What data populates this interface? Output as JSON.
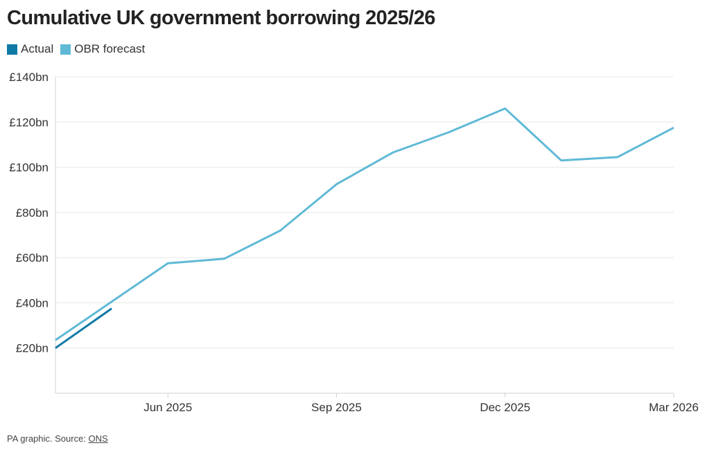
{
  "title": "Cumulative UK government borrowing 2025/26",
  "footer": {
    "text": "PA graphic. Source: ",
    "source_link": "ONS"
  },
  "colors": {
    "actual": "#0f7aa6",
    "forecast": "#5fb9d6",
    "grid": "#e8e8e8",
    "axis": "#d0d0d0"
  },
  "chart_data": {
    "type": "line",
    "title": "Cumulative UK government borrowing 2025/26",
    "legend_position": "top-left",
    "grid": true,
    "y_unit_prefix": "£",
    "y_unit_suffix": "bn",
    "ylim": [
      0,
      140
    ],
    "y_ticks": [
      {
        "value": 20,
        "label": "£20bn"
      },
      {
        "value": 40,
        "label": "£40bn"
      },
      {
        "value": 60,
        "label": "£60bn"
      },
      {
        "value": 80,
        "label": "£80bn"
      },
      {
        "value": 100,
        "label": "£100bn"
      },
      {
        "value": 120,
        "label": "£120bn"
      },
      {
        "value": 140,
        "label": "£140bn"
      }
    ],
    "x_ticks": [
      {
        "value": "2025-06",
        "label": "Jun 2025"
      },
      {
        "value": "2025-09",
        "label": "Sep 2025"
      },
      {
        "value": "2025-12",
        "label": "Dec 2025"
      },
      {
        "value": "2026-03",
        "label": "Mar 2026"
      }
    ],
    "xlim": [
      "2025-04",
      "2026-03"
    ],
    "series": [
      {
        "name": "Actual",
        "color": "#0f7aa6",
        "x": [
          "2025-04",
          "2025-05"
        ],
        "y": [
          20.0,
          37.5
        ]
      },
      {
        "name": "OBR forecast",
        "color": "#5fb9d6",
        "x": [
          "2025-04",
          "2025-05",
          "2025-06",
          "2025-07",
          "2025-08",
          "2025-09",
          "2025-10",
          "2025-11",
          "2025-12",
          "2026-01",
          "2026-02",
          "2026-03"
        ],
        "y": [
          23.5,
          40.5,
          57.5,
          59.5,
          72.0,
          92.5,
          106.5,
          115.5,
          126.0,
          103.0,
          104.5,
          117.5
        ]
      }
    ]
  }
}
